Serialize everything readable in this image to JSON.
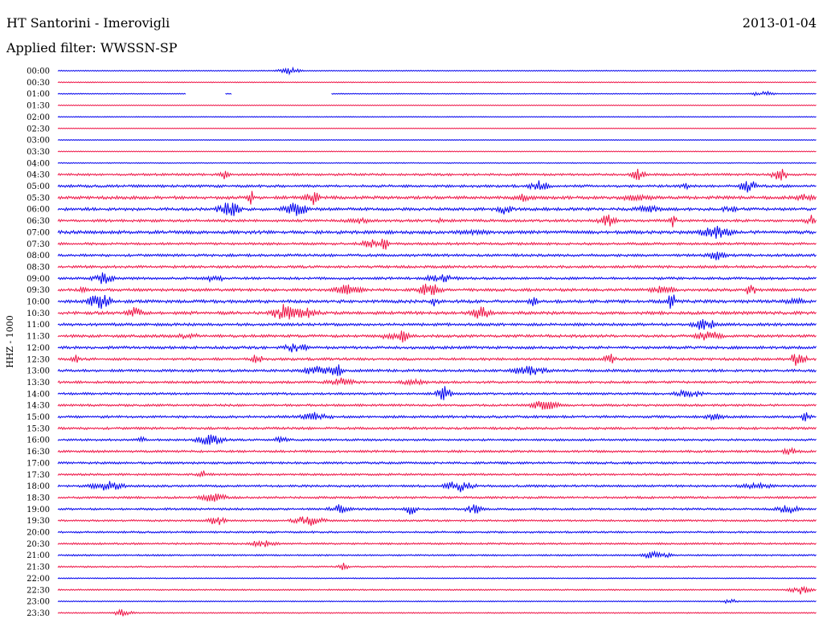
{
  "header": {
    "title": "HT Santorini - Imerovigli",
    "date": "2013-01-04",
    "filter": "Applied filter: WWSSN-SP"
  },
  "chart_data": {
    "type": "line",
    "ylabel": "HHZ - 1000",
    "xlabel": "",
    "colors": [
      "#0000ee",
      "#ee1144"
    ],
    "rows": [
      {
        "label": "00:00",
        "activity": 0.08
      },
      {
        "label": "00:30",
        "activity": 0.06
      },
      {
        "label": "01:00",
        "activity": 0.08,
        "gaps": [
          [
            0.17,
            0.22
          ],
          [
            0.23,
            0.36
          ]
        ]
      },
      {
        "label": "01:30",
        "activity": 0.02
      },
      {
        "label": "02:00",
        "activity": 0.05
      },
      {
        "label": "02:30",
        "activity": 0.02
      },
      {
        "label": "03:00",
        "activity": 0.03
      },
      {
        "label": "03:30",
        "activity": 0.05
      },
      {
        "label": "04:00",
        "activity": 0.1
      },
      {
        "label": "04:30",
        "activity": 0.45
      },
      {
        "label": "05:00",
        "activity": 0.55
      },
      {
        "label": "05:30",
        "activity": 0.7
      },
      {
        "label": "06:00",
        "activity": 0.65
      },
      {
        "label": "06:30",
        "activity": 0.55
      },
      {
        "label": "07:00",
        "activity": 0.75
      },
      {
        "label": "07:30",
        "activity": 0.5
      },
      {
        "label": "08:00",
        "activity": 0.55
      },
      {
        "label": "08:30",
        "activity": 0.55
      },
      {
        "label": "09:00",
        "activity": 0.5
      },
      {
        "label": "09:30",
        "activity": 0.6
      },
      {
        "label": "10:00",
        "activity": 0.7
      },
      {
        "label": "10:30",
        "activity": 0.7
      },
      {
        "label": "11:00",
        "activity": 0.6
      },
      {
        "label": "11:30",
        "activity": 0.6
      },
      {
        "label": "12:00",
        "activity": 0.6
      },
      {
        "label": "12:30",
        "activity": 0.55
      },
      {
        "label": "13:00",
        "activity": 0.55
      },
      {
        "label": "13:30",
        "activity": 0.5
      },
      {
        "label": "14:00",
        "activity": 0.45
      },
      {
        "label": "14:30",
        "activity": 0.45
      },
      {
        "label": "15:00",
        "activity": 0.5
      },
      {
        "label": "15:30",
        "activity": 0.5
      },
      {
        "label": "16:00",
        "activity": 0.4
      },
      {
        "label": "16:30",
        "activity": 0.45
      },
      {
        "label": "17:00",
        "activity": 0.45
      },
      {
        "label": "17:30",
        "activity": 0.4
      },
      {
        "label": "18:00",
        "activity": 0.45
      },
      {
        "label": "18:30",
        "activity": 0.45
      },
      {
        "label": "19:00",
        "activity": 0.4
      },
      {
        "label": "19:30",
        "activity": 0.35
      },
      {
        "label": "20:00",
        "activity": 0.35
      },
      {
        "label": "20:30",
        "activity": 0.35
      },
      {
        "label": "21:00",
        "activity": 0.25
      },
      {
        "label": "21:30",
        "activity": 0.25
      },
      {
        "label": "22:00",
        "activity": 0.1
      },
      {
        "label": "22:30",
        "activity": 0.2
      },
      {
        "label": "23:00",
        "activity": 0.1
      },
      {
        "label": "23:30",
        "activity": 0.15
      }
    ]
  }
}
